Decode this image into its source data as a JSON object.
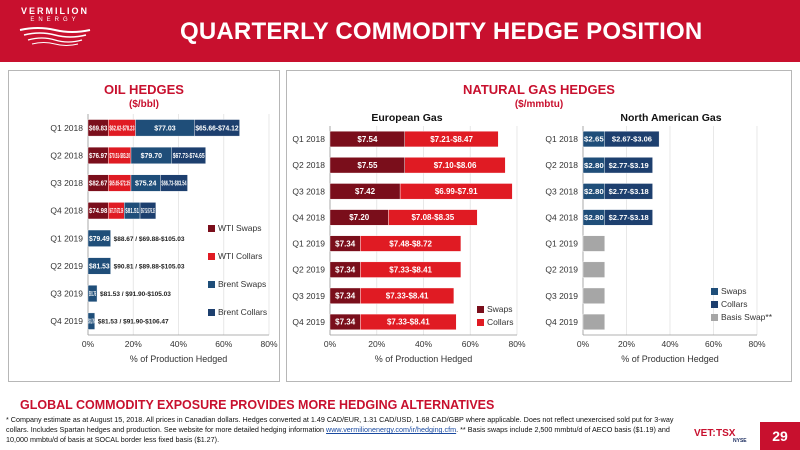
{
  "header": {
    "logo_text": "VERMILION",
    "logo_sub": "ENERGY",
    "title": "QUARTERLY COMMODITY HEDGE POSITION"
  },
  "oil_panel": {
    "title": "OIL HEDGES",
    "subtitle": "($/bbl)"
  },
  "gas_panel": {
    "title": "NATURAL GAS HEDGES",
    "subtitle": "($/mmbtu)"
  },
  "footer": {
    "banner": "GLOBAL COMMODITY EXPOSURE PROVIDES MORE HEDGING ALTERNATIVES",
    "note_part1": "* Company estimate as at August 15, 2018. All prices in Canadian dollars. Hedges converted at 1.49 CAD/EUR, 1.31 CAD/USD, 1.68 CAD/GBP where applicable.  Does not reflect unexercised sold put for 3-way collars. Includes Spartan hedges and production. See website for more detailed hedging information ",
    "link": "www.vermilionenergy.com/ir/hedging.cfm",
    "note_part2": ". ** Basis swaps include 2,500 mmbtu/d of AECO basis ($1.19) and 10,000 mmbtu/d of basis at SOCAL border less fixed basis ($1.27).",
    "vet": "VET:",
    "tsx": "TSX",
    "nyse": "NYSE",
    "page": "29"
  },
  "colors": {
    "brand_red": "#c8102e",
    "wti_swaps": "#7a0e1b",
    "wti_collars": "#e01b23",
    "brent_swaps": "#1f4e79",
    "brent_collars": "#1d3f6e",
    "gas_swaps": "#7a0e1b",
    "gas_collars": "#e01b23",
    "na_swaps": "#1f4e79",
    "na_collars": "#1d3f6e",
    "basis_swap": "#a6a6a6"
  },
  "chart_data": [
    {
      "type": "bar",
      "orientation": "horizontal",
      "stacked": true,
      "id": "oil",
      "title": "",
      "xlabel": "% of Production Hedged",
      "xlim": [
        0,
        80
      ],
      "xticks": [
        "0%",
        "20%",
        "40%",
        "60%",
        "80%"
      ],
      "categories": [
        "Q1 2018",
        "Q2 2018",
        "Q3 2018",
        "Q4 2018",
        "Q1 2019",
        "Q2 2019",
        "Q3 2019",
        "Q4 2019"
      ],
      "legend_position": "right",
      "series": [
        {
          "name": "WTI Swaps",
          "color_key": "wti_swaps",
          "values": [
            9,
            9,
            9,
            9,
            0,
            0,
            0,
            0
          ],
          "labels": [
            "$69.83",
            "$76.97",
            "$82.67",
            "$74.98",
            "",
            "",
            "",
            ""
          ]
        },
        {
          "name": "WTI Collars",
          "color_key": "wti_collars",
          "values": [
            12,
            10,
            10,
            7,
            0,
            0,
            0,
            0
          ],
          "labels": [
            "$62.62-$78.23",
            "$70.51-$83.20",
            "$65.65-$72.35",
            "$67.37-$72.36",
            "",
            "",
            "",
            ""
          ]
        },
        {
          "name": "Brent Swaps",
          "color_key": "brent_swaps",
          "values": [
            26,
            18,
            13,
            7,
            10,
            10,
            4,
            3
          ],
          "labels": [
            "$77.03",
            "$79.70",
            "$75.24",
            "$81.51",
            "$79.49",
            "$81.53",
            "$91.76",
            "$91.76"
          ]
        },
        {
          "name": "Brent Collars",
          "color_key": "brent_collars",
          "values": [
            20,
            15,
            12,
            7,
            0,
            0,
            0,
            0
          ],
          "labels": [
            "$65.66-$74.12",
            "$67.73-$74.65",
            "$66.73-$83.54",
            "$67.52-$76.15",
            "",
            "",
            "",
            ""
          ]
        }
      ],
      "extra_labels": [
        "",
        "",
        "",
        "",
        "$88.67 / $69.88-$105.03",
        "$90.81 / $89.88-$105.03",
        "$81.53 / $91.90-$105.03",
        "$81.53 / $91.90-$106.47"
      ]
    },
    {
      "type": "bar",
      "orientation": "horizontal",
      "stacked": true,
      "id": "european_gas",
      "title": "European Gas",
      "xlabel": "% of Production Hedged",
      "xlim": [
        0,
        80
      ],
      "xticks": [
        "0%",
        "20%",
        "40%",
        "60%",
        "80%"
      ],
      "categories": [
        "Q1 2018",
        "Q2 2018",
        "Q3 2018",
        "Q4 2018",
        "Q1 2019",
        "Q2 2019",
        "Q3 2019",
        "Q4 2019"
      ],
      "legend_position": "bottom-right",
      "series": [
        {
          "name": "Swaps",
          "color_key": "gas_swaps",
          "values": [
            32,
            32,
            30,
            25,
            13,
            13,
            13,
            13
          ],
          "labels": [
            "$7.54",
            "$7.55",
            "$7.42",
            "$7.20",
            "$7.34",
            "$7.34",
            "$7.34",
            "$7.34"
          ]
        },
        {
          "name": "Collars",
          "color_key": "gas_collars",
          "values": [
            40,
            43,
            48,
            38,
            43,
            43,
            40,
            41
          ],
          "labels": [
            "$7.21-$8.47",
            "$7.10-$8.06",
            "$6.99-$7.91",
            "$7.08-$8.35",
            "$7.48-$8.72",
            "$7.33-$8.41",
            "$7.33-$8.41",
            "$7.33-$8.41"
          ]
        }
      ]
    },
    {
      "type": "bar",
      "orientation": "horizontal",
      "stacked": true,
      "id": "north_american_gas",
      "title": "North American Gas",
      "xlabel": "% of Production Hedged",
      "xlim": [
        0,
        80
      ],
      "xticks": [
        "0%",
        "20%",
        "40%",
        "60%",
        "80%"
      ],
      "categories": [
        "Q1 2018",
        "Q2 2018",
        "Q3 2018",
        "Q4 2018",
        "Q1 2019",
        "Q2 2019",
        "Q3 2019",
        "Q4 2019"
      ],
      "legend_position": "bottom-right",
      "series": [
        {
          "name": "Swaps",
          "color_key": "na_swaps",
          "values": [
            10,
            10,
            10,
            10,
            0,
            0,
            0,
            0
          ],
          "labels": [
            "$2.65",
            "$2.80",
            "$2.80",
            "$2.80",
            "",
            "",
            "",
            ""
          ]
        },
        {
          "name": "Collars",
          "color_key": "na_collars",
          "values": [
            25,
            22,
            22,
            22,
            0,
            0,
            0,
            0
          ],
          "labels": [
            "$2.67-$3.06",
            "$2.77-$3.19",
            "$2.77-$3.18",
            "$2.77-$3.18",
            "",
            "",
            "",
            ""
          ]
        },
        {
          "name": "Basis Swap**",
          "color_key": "basis_swap",
          "values": [
            0,
            0,
            0,
            0,
            10,
            10,
            10,
            10
          ],
          "labels": [
            "",
            "",
            "",
            "",
            "",
            "",
            "",
            ""
          ]
        }
      ]
    }
  ]
}
